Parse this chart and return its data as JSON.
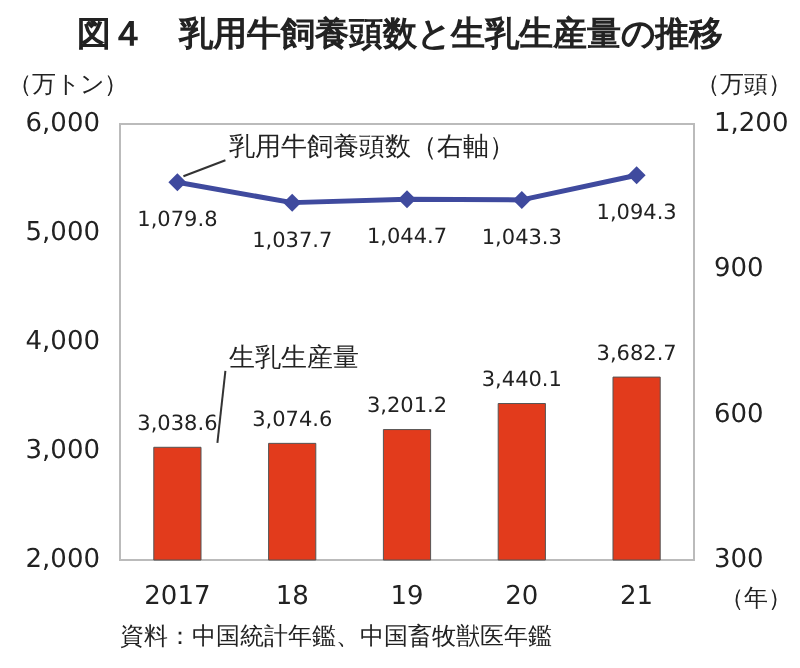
{
  "chart_data": {
    "type": "bar",
    "title": "図４　乳用牛飼養頭数と生乳生産量の推移",
    "categories": [
      "2017",
      "18",
      "19",
      "20",
      "21"
    ],
    "series": [
      {
        "name": "生乳生産量",
        "color": "#e23b1c",
        "values": [
          3038.6,
          3074.6,
          3201.2,
          3440.1,
          3682.7
        ],
        "value_labels": [
          "3,038.6",
          "3,074.6",
          "3,201.2",
          "3,440.1",
          "3,682.7"
        ]
      },
      {
        "name": "乳用牛飼養頭数（右軸）",
        "type": "line",
        "axis": "y2",
        "color": "#3f4a9e",
        "values": [
          1079.8,
          1037.7,
          1044.7,
          1043.3,
          1094.3
        ],
        "value_labels": [
          "1,079.8",
          "1,037.7",
          "1,044.7",
          "1,043.3",
          "1,094.3"
        ]
      }
    ],
    "xlabel": "（年）",
    "ylabel": "（万トン）",
    "y2label": "（万頭）",
    "ylim": [
      2000,
      6000
    ],
    "yticks": [
      {
        "value": 2000,
        "label": "2,000"
      },
      {
        "value": 3000,
        "label": "3,000"
      },
      {
        "value": 4000,
        "label": "4,000"
      },
      {
        "value": 5000,
        "label": "5,000"
      },
      {
        "value": 6000,
        "label": "6,000"
      }
    ],
    "y2lim": [
      300,
      1200
    ],
    "y2ticks": [
      300,
      600,
      900,
      {
        "value": 1200,
        "label": "1,200"
      }
    ],
    "grid": false,
    "marker": "diamond",
    "line_style": "solid",
    "annotations": [
      "資料：中国統計年鑑、中国畜牧獣医年鑑"
    ]
  }
}
